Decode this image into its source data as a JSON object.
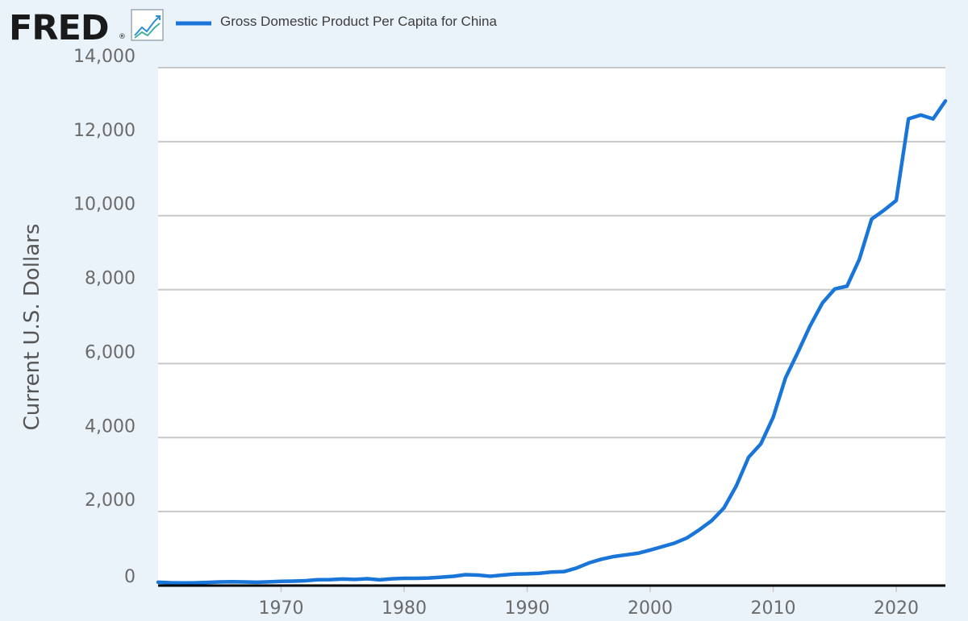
{
  "brand": {
    "logo_text": "FRED",
    "logo_icon": "line-graph-icon",
    "registered_mark": "®"
  },
  "colors": {
    "background": "#eaf2fa",
    "plot_background": "#ffffff",
    "series_line": "#1976d8",
    "gridline": "#c8c8c8",
    "axis_baseline": "#000000"
  },
  "chart_data": {
    "type": "line",
    "title": "",
    "xlabel": "",
    "ylabel": "Current U.S. Dollars",
    "xlim": [
      1960,
      2024
    ],
    "ylim": [
      0,
      14000
    ],
    "grid": true,
    "legend_placement": "top-left",
    "x_ticks": [
      1970,
      1980,
      1990,
      2000,
      2010,
      2020
    ],
    "x_tick_labels": [
      "1970",
      "1980",
      "1990",
      "2000",
      "2010",
      "2020"
    ],
    "y_ticks": [
      0,
      2000,
      4000,
      6000,
      8000,
      10000,
      12000,
      14000
    ],
    "y_tick_labels": [
      "0",
      "2,000",
      "4,000",
      "6,000",
      "8,000",
      "10,000",
      "12,000",
      "14,000"
    ],
    "series": [
      {
        "name": "Gross Domestic Product Per Capita for China",
        "x": [
          1960,
          1961,
          1962,
          1963,
          1964,
          1965,
          1966,
          1967,
          1968,
          1969,
          1970,
          1971,
          1972,
          1973,
          1974,
          1975,
          1976,
          1977,
          1978,
          1979,
          1980,
          1981,
          1982,
          1983,
          1984,
          1985,
          1986,
          1987,
          1988,
          1989,
          1990,
          1991,
          1992,
          1993,
          1994,
          1995,
          1996,
          1997,
          1998,
          1999,
          2000,
          2001,
          2002,
          2003,
          2004,
          2005,
          2006,
          2007,
          2008,
          2009,
          2010,
          2011,
          2012,
          2013,
          2014,
          2015,
          2016,
          2017,
          2018,
          2019,
          2020,
          2021,
          2022,
          2023,
          2024
        ],
        "values": [
          90,
          76,
          70,
          74,
          85,
          98,
          104,
          97,
          91,
          100,
          113,
          119,
          132,
          157,
          160,
          178,
          165,
          185,
          156,
          183,
          195,
          197,
          203,
          225,
          251,
          294,
          282,
          252,
          284,
          311,
          318,
          333,
          366,
          377,
          473,
          609,
          709,
          782,
          829,
          873,
          959,
          1053,
          1149,
          1289,
          1509,
          1753,
          2099,
          2694,
          3468,
          3832,
          4550,
          5614,
          6301,
          7020,
          7636,
          8016,
          8094,
          8817,
          9905,
          10144,
          10409,
          12618,
          12720,
          12614,
          13100
        ]
      }
    ]
  }
}
